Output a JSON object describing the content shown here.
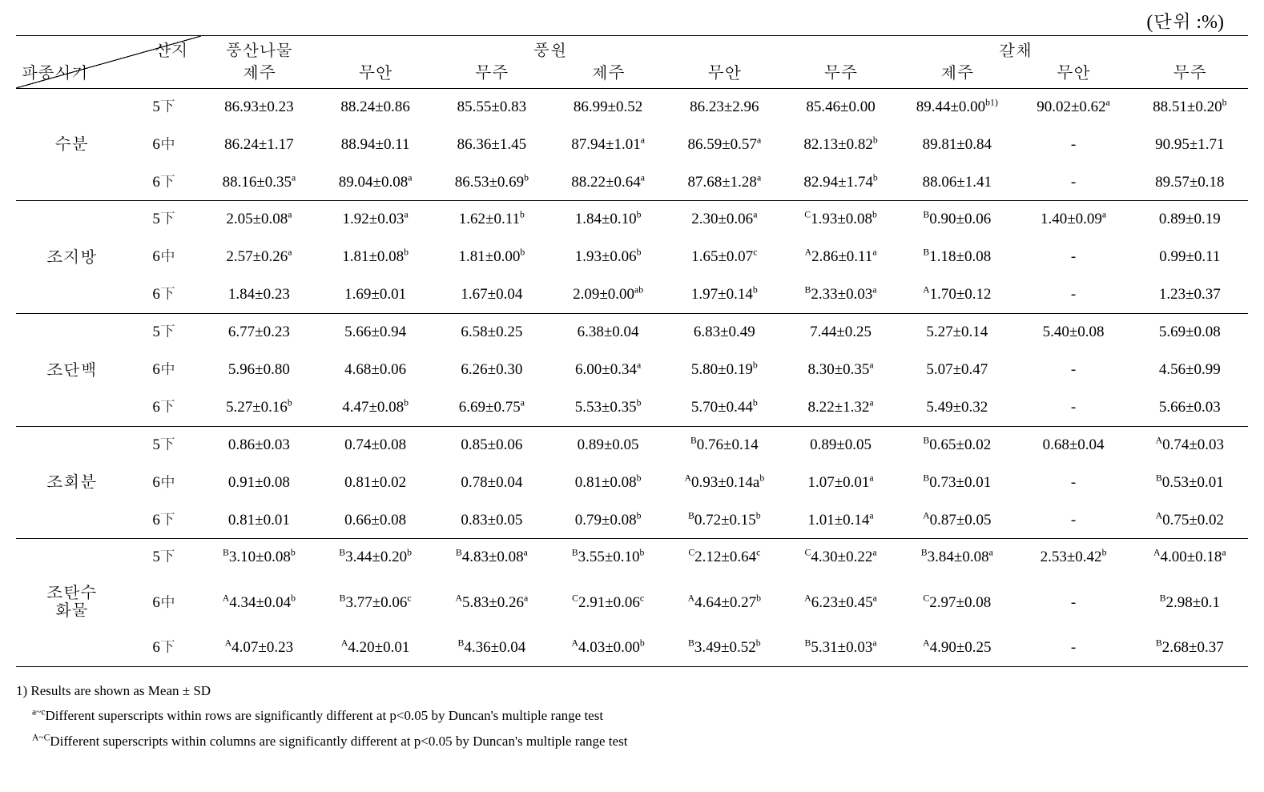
{
  "unit_label": "(단위 :%)",
  "diag": {
    "top": "산지",
    "bottom": "파종시기"
  },
  "top_headers": [
    "풍산나물",
    "풍원",
    "갈채"
  ],
  "origins": [
    "제주",
    "무안",
    "무주",
    "제주",
    "무안",
    "무주",
    "제주",
    "무안",
    "무주"
  ],
  "sow_labels": [
    "5下",
    "6中",
    "6下"
  ],
  "groups": [
    {
      "label": "수분",
      "rows": [
        [
          {
            "v": "86.93±0.23"
          },
          {
            "v": "88.24±0.86"
          },
          {
            "v": "85.55±0.83"
          },
          {
            "v": "86.99±0.52"
          },
          {
            "v": "86.23±2.96"
          },
          {
            "v": "85.46±0.00"
          },
          {
            "v": "89.44±0.00",
            "sup": "b1)"
          },
          {
            "v": "90.02±0.62",
            "sup": "a"
          },
          {
            "v": "88.51±0.20",
            "sup": "b"
          }
        ],
        [
          {
            "v": "86.24±1.17"
          },
          {
            "v": "88.94±0.11"
          },
          {
            "v": "86.36±1.45"
          },
          {
            "v": "87.94±1.01",
            "sup": "a"
          },
          {
            "v": "86.59±0.57",
            "sup": "a"
          },
          {
            "v": "82.13±0.82",
            "sup": "b"
          },
          {
            "v": "89.81±0.84"
          },
          {
            "v": "-"
          },
          {
            "v": "90.95±1.71"
          }
        ],
        [
          {
            "v": "88.16±0.35",
            "sup": "a"
          },
          {
            "v": "89.04±0.08",
            "sup": "a"
          },
          {
            "v": "86.53±0.69",
            "sup": "b"
          },
          {
            "v": "88.22±0.64",
            "sup": "a"
          },
          {
            "v": "87.68±1.28",
            "sup": "a"
          },
          {
            "v": "82.94±1.74",
            "sup": "b"
          },
          {
            "v": "88.06±1.41"
          },
          {
            "v": "-"
          },
          {
            "v": "89.57±0.18"
          }
        ]
      ]
    },
    {
      "label": "조지방",
      "rows": [
        [
          {
            "v": "2.05±0.08",
            "sup": "a"
          },
          {
            "v": "1.92±0.03",
            "sup": "a"
          },
          {
            "v": "1.62±0.11",
            "sup": "b"
          },
          {
            "v": "1.84±0.10",
            "sup": "b"
          },
          {
            "v": "2.30±0.06",
            "sup": "a"
          },
          {
            "pre": "C",
            "v": "1.93±0.08",
            "sup": "b"
          },
          {
            "pre": "B",
            "v": "0.90±0.06"
          },
          {
            "v": "1.40±0.09",
            "sup": "a"
          },
          {
            "v": "0.89±0.19"
          }
        ],
        [
          {
            "v": "2.57±0.26",
            "sup": "a"
          },
          {
            "v": "1.81±0.08",
            "sup": "b"
          },
          {
            "v": "1.81±0.00",
            "sup": "b"
          },
          {
            "v": "1.93±0.06",
            "sup": "b"
          },
          {
            "v": "1.65±0.07",
            "sup": "c"
          },
          {
            "pre": "A",
            "v": "2.86±0.11",
            "sup": "a"
          },
          {
            "pre": "B",
            "v": "1.18±0.08"
          },
          {
            "v": "-"
          },
          {
            "v": "0.99±0.11"
          }
        ],
        [
          {
            "v": "1.84±0.23"
          },
          {
            "v": "1.69±0.01"
          },
          {
            "v": "1.67±0.04"
          },
          {
            "v": "2.09±0.00",
            "sup": "ab"
          },
          {
            "v": "1.97±0.14",
            "sup": "b"
          },
          {
            "pre": "B",
            "v": "2.33±0.03",
            "sup": "a"
          },
          {
            "pre": "A",
            "v": "1.70±0.12"
          },
          {
            "v": "-"
          },
          {
            "v": "1.23±0.37"
          }
        ]
      ]
    },
    {
      "label": "조단백",
      "rows": [
        [
          {
            "v": "6.77±0.23"
          },
          {
            "v": "5.66±0.94"
          },
          {
            "v": "6.58±0.25"
          },
          {
            "v": "6.38±0.04"
          },
          {
            "v": "6.83±0.49"
          },
          {
            "v": "7.44±0.25"
          },
          {
            "v": "5.27±0.14"
          },
          {
            "v": "5.40±0.08"
          },
          {
            "v": "5.69±0.08"
          }
        ],
        [
          {
            "v": "5.96±0.80"
          },
          {
            "v": "4.68±0.06"
          },
          {
            "v": "6.26±0.30"
          },
          {
            "v": "6.00±0.34",
            "sup": "a"
          },
          {
            "v": "5.80±0.19",
            "sup": "b"
          },
          {
            "v": "8.30±0.35",
            "sup": "a"
          },
          {
            "v": "5.07±0.47"
          },
          {
            "v": "-"
          },
          {
            "v": "4.56±0.99"
          }
        ],
        [
          {
            "v": "5.27±0.16",
            "sup": "b"
          },
          {
            "v": "4.47±0.08",
            "sup": "b"
          },
          {
            "v": "6.69±0.75",
            "sup": "a"
          },
          {
            "v": "5.53±0.35",
            "sup": "b"
          },
          {
            "v": "5.70±0.44",
            "sup": "b"
          },
          {
            "v": "8.22±1.32",
            "sup": "a"
          },
          {
            "v": "5.49±0.32"
          },
          {
            "v": "-"
          },
          {
            "v": "5.66±0.03"
          }
        ]
      ]
    },
    {
      "label": "조회분",
      "rows": [
        [
          {
            "v": "0.86±0.03"
          },
          {
            "v": "0.74±0.08"
          },
          {
            "v": "0.85±0.06"
          },
          {
            "v": "0.89±0.05"
          },
          {
            "pre": "B",
            "v": "0.76±0.14"
          },
          {
            "v": "0.89±0.05"
          },
          {
            "pre": "B",
            "v": "0.65±0.02"
          },
          {
            "v": "0.68±0.04"
          },
          {
            "pre": "A",
            "v": "0.74±0.03"
          }
        ],
        [
          {
            "v": "0.91±0.08"
          },
          {
            "v": "0.81±0.02"
          },
          {
            "v": "0.78±0.04"
          },
          {
            "v": "0.81±0.08",
            "sup": "b"
          },
          {
            "pre": "A",
            "v": "0.93±0.14a",
            "sup": "b"
          },
          {
            "v": "1.07±0.01",
            "sup": "a"
          },
          {
            "pre": "B",
            "v": "0.73±0.01"
          },
          {
            "v": "-"
          },
          {
            "pre": "B",
            "v": "0.53±0.01"
          }
        ],
        [
          {
            "v": "0.81±0.01"
          },
          {
            "v": "0.66±0.08"
          },
          {
            "v": "0.83±0.05"
          },
          {
            "v": "0.79±0.08",
            "sup": "b"
          },
          {
            "pre": "B",
            "v": "0.72±0.15",
            "sup": "b"
          },
          {
            "v": "1.01±0.14",
            "sup": "a"
          },
          {
            "pre": "A",
            "v": "0.87±0.05"
          },
          {
            "v": "-"
          },
          {
            "pre": "A",
            "v": "0.75±0.02"
          }
        ]
      ]
    },
    {
      "label": "조탄수\n화물",
      "rows": [
        [
          {
            "pre": "B",
            "v": "3.10±0.08",
            "sup": "b"
          },
          {
            "pre": "B",
            "v": "3.44±0.20",
            "sup": "b"
          },
          {
            "pre": "B",
            "v": "4.83±0.08",
            "sup": "a"
          },
          {
            "pre": "B",
            "v": "3.55±0.10",
            "sup": "b"
          },
          {
            "pre": "C",
            "v": "2.12±0.64",
            "sup": "c"
          },
          {
            "pre": "C",
            "v": "4.30±0.22",
            "sup": "a"
          },
          {
            "pre": "B",
            "v": "3.84±0.08",
            "sup": "a"
          },
          {
            "v": "2.53±0.42",
            "sup": "b"
          },
          {
            "pre": "A",
            "v": "4.00±0.18",
            "sup": "a"
          }
        ],
        [
          {
            "pre": "A",
            "v": "4.34±0.04",
            "sup": "b"
          },
          {
            "pre": "B",
            "v": "3.77±0.06",
            "sup": "c"
          },
          {
            "pre": "A",
            "v": "5.83±0.26",
            "sup": "a"
          },
          {
            "pre": "C",
            "v": "2.91±0.06",
            "sup": "c"
          },
          {
            "pre": "A",
            "v": "4.64±0.27",
            "sup": "b"
          },
          {
            "pre": "A",
            "v": "6.23±0.45",
            "sup": "a"
          },
          {
            "pre": "C",
            "v": "2.97±0.08"
          },
          {
            "v": "-"
          },
          {
            "pre": "B",
            "v": "2.98±0.1"
          }
        ],
        [
          {
            "pre": "A",
            "v": "4.07±0.23"
          },
          {
            "pre": "A",
            "v": "4.20±0.01"
          },
          {
            "pre": "B",
            "v": "4.36±0.04"
          },
          {
            "pre": "A",
            "v": "4.03±0.00",
            "sup": "b"
          },
          {
            "pre": "B",
            "v": "3.49±0.52",
            "sup": "b"
          },
          {
            "pre": "B",
            "v": "5.31±0.03",
            "sup": "a"
          },
          {
            "pre": "A",
            "v": "4.90±0.25"
          },
          {
            "v": "-"
          },
          {
            "pre": "B",
            "v": "2.68±0.37"
          }
        ]
      ]
    }
  ],
  "footnotes": {
    "n1": "1) Results are shown as Mean ± SD",
    "n2_pre": "a~c",
    "n2_text": "Different superscripts within rows are significantly different at p<0.05 by Duncan's multiple range test",
    "n3_pre": "A~C",
    "n3_text": "Different superscripts within columns are significantly different at p<0.05 by Duncan's multiple range test"
  }
}
